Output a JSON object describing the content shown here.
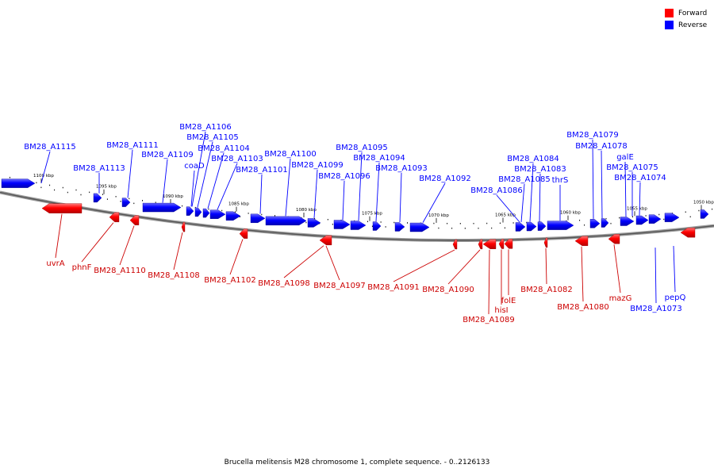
{
  "legend": {
    "forward_label": "Forward",
    "reverse_label": "Reverse",
    "forward_color": "#ff0000",
    "reverse_color": "#0000ff"
  },
  "caption": "Brucella melitensis M28 chromosome 1, complete sequence. - 0..2126133",
  "axis": {
    "ticks": [
      "1100 kbp",
      "1095 kbp",
      "1090 kbp",
      "1085 kbp",
      "1080 kbp",
      "1075 kbp",
      "1070 kbp",
      "1065 kbp",
      "1060 kbp",
      "1055 kbp",
      "1050 kbp"
    ]
  },
  "genes": {
    "reverse": [
      "BM28_A1115",
      "BM28_A1113",
      "BM28_A1111",
      "BM28_A1109",
      "BM28_A1106",
      "BM28_A1105",
      "coaD",
      "BM28_A1104",
      "BM28_A1103",
      "BM28_A1101",
      "BM28_A1100",
      "BM28_A1099",
      "BM28_A1096",
      "BM28_A1095",
      "BM28_A1094",
      "BM28_A1093",
      "BM28_A1092",
      "BM28_A1086",
      "BM28_A1084",
      "BM28_A1085",
      "BM28_A1083",
      "thrS",
      "BM28_A1079",
      "BM28_A1078",
      "galE",
      "BM28_A1075",
      "BM28_A1074",
      "BM28_A1073",
      "pepQ"
    ],
    "forward": [
      "uvrA",
      "phnF",
      "BM28_A1110",
      "BM28_A1108",
      "BM28_A1102",
      "BM28_A1098",
      "BM28_A1097",
      "BM28_A1091",
      "BM28_A1090",
      "BM28_A1089",
      "hisI",
      "folE",
      "BM28_A1082",
      "BM28_A1080",
      "mazG"
    ]
  }
}
